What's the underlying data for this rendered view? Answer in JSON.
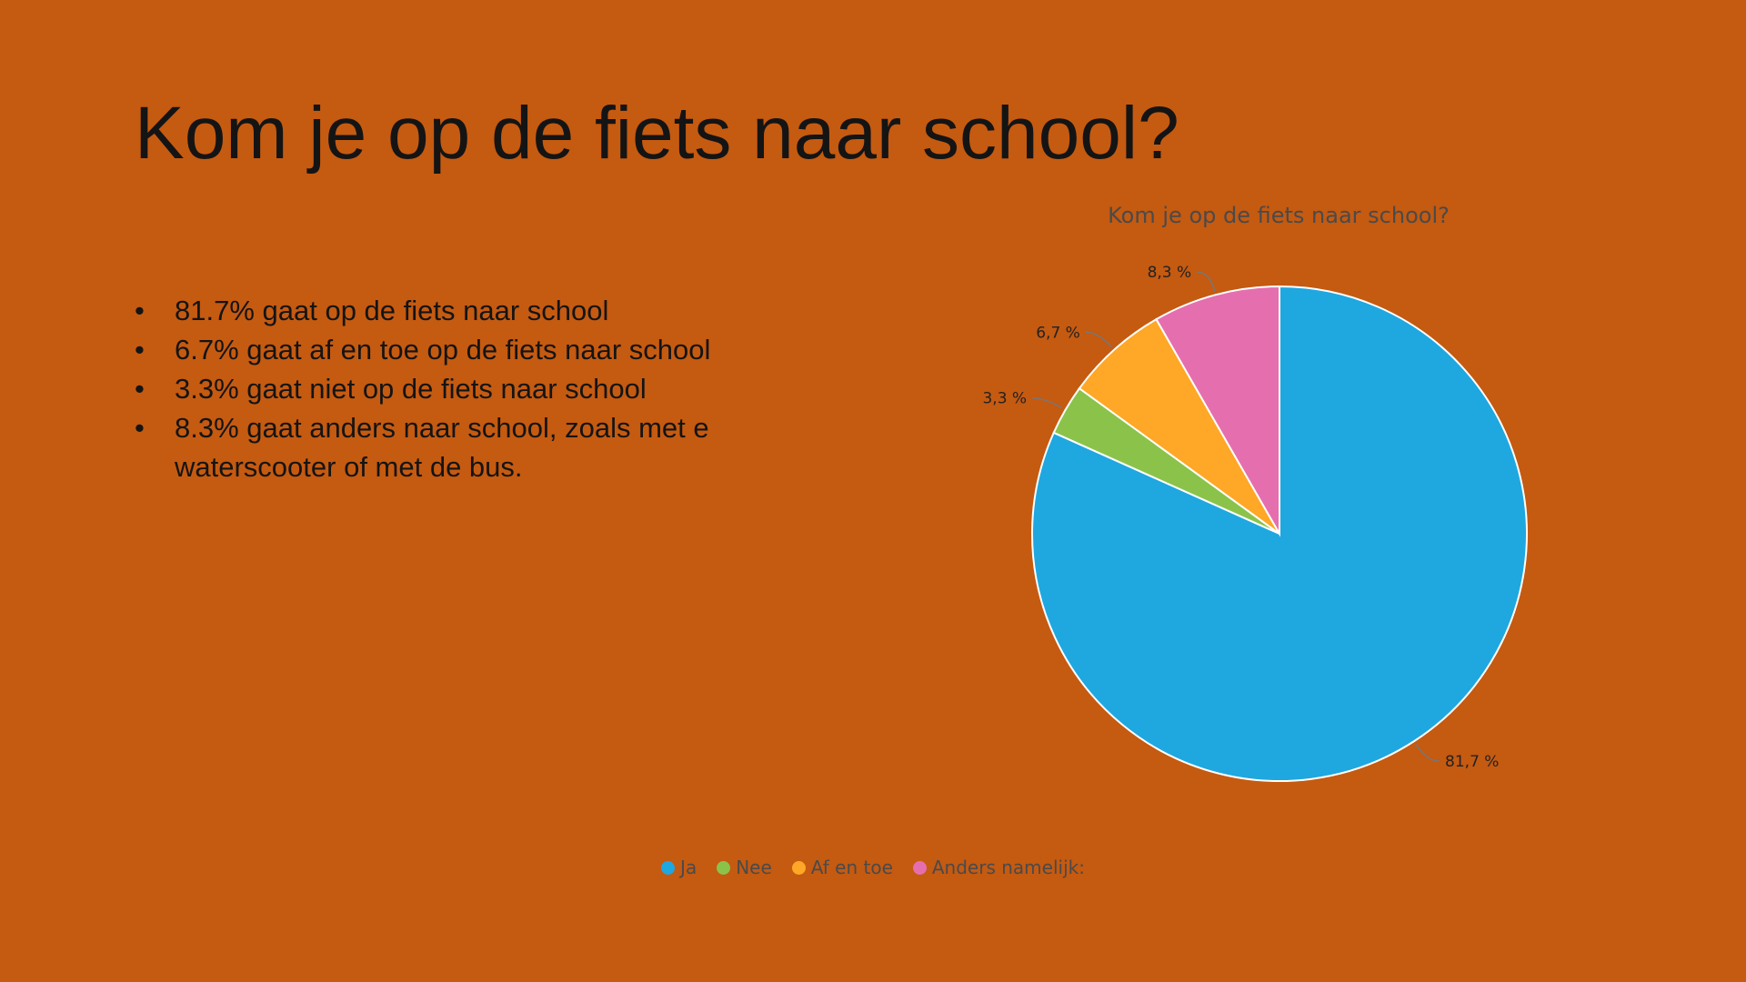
{
  "slide": {
    "title": "Kom je op de fiets naar school?",
    "bullets": [
      "81.7% gaat op de fiets naar school",
      "6.7% gaat af en toe op de fiets naar school",
      "3.3% gaat niet op de fiets naar school",
      "8.3% gaat anders naar school, zoals met e waterscooter of met de bus."
    ],
    "bullet_glyph": "•",
    "background_color": "#c55a11"
  },
  "chart_data": {
    "type": "pie",
    "title": "Kom je op de fiets naar school?",
    "categories": [
      "Ja",
      "Nee",
      "Af en toe",
      "Anders namelijk:"
    ],
    "values": [
      81.7,
      3.3,
      6.7,
      8.3
    ],
    "labels": [
      "81,7 %",
      "3,3 %",
      "6,7 %",
      "8,3 %"
    ],
    "colors": [
      "#1fa7e0",
      "#8bc34a",
      "#ffa726",
      "#e56fae"
    ],
    "legend_position": "bottom",
    "start": "top",
    "direction": "clockwise"
  }
}
